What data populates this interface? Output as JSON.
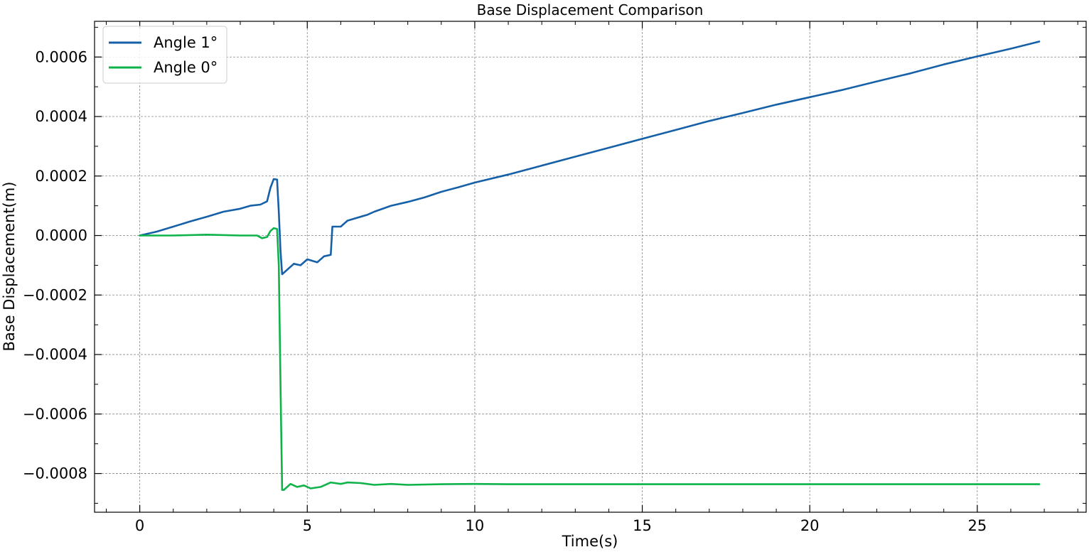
{
  "chart_data": {
    "type": "line",
    "title": "Base Displacement Comparison",
    "xlabel": "Time(s)",
    "ylabel": "Base Displacement(m)",
    "xlim": [
      -1.35,
      28.25
    ],
    "ylim": [
      -0.00093,
      0.00072
    ],
    "x_ticks": [
      0,
      5,
      10,
      15,
      20,
      25
    ],
    "x_tick_labels": [
      "0",
      "5",
      "10",
      "15",
      "20",
      "25"
    ],
    "y_ticks": [
      -0.0008,
      -0.0006,
      -0.0004,
      -0.0002,
      0.0,
      0.0002,
      0.0004,
      0.0006
    ],
    "y_tick_labels": [
      "−0.0008",
      "−0.0006",
      "−0.0004",
      "−0.0002",
      "0.0000",
      "0.0002",
      "0.0004",
      "0.0006"
    ],
    "grid": true,
    "legend_position": "top-left",
    "series": [
      {
        "name": "Angle 1°",
        "color": "#1660a8",
        "points": [
          [
            0,
            0
          ],
          [
            0.5,
            1.3e-05
          ],
          [
            1.0,
            3e-05
          ],
          [
            1.5,
            4.7e-05
          ],
          [
            2.0,
            6.3e-05
          ],
          [
            2.5,
            8e-05
          ],
          [
            3.0,
            9e-05
          ],
          [
            3.3,
            0.0001
          ],
          [
            3.6,
            0.000104
          ],
          [
            3.8,
            0.000115
          ],
          [
            3.9,
            0.00016
          ],
          [
            4.0,
            0.00019
          ],
          [
            4.1,
            0.000188
          ],
          [
            4.15,
            8e-05
          ],
          [
            4.2,
            -5e-05
          ],
          [
            4.25,
            -0.00013
          ],
          [
            4.4,
            -0.000115
          ],
          [
            4.6,
            -9.5e-05
          ],
          [
            4.8,
            -0.0001
          ],
          [
            5.0,
            -8e-05
          ],
          [
            5.3,
            -9e-05
          ],
          [
            5.5,
            -7e-05
          ],
          [
            5.7,
            -6.5e-05
          ],
          [
            5.75,
            3e-05
          ],
          [
            6.0,
            3e-05
          ],
          [
            6.2,
            5e-05
          ],
          [
            6.5,
            6e-05
          ],
          [
            6.8,
            7e-05
          ],
          [
            7.0,
            8e-05
          ],
          [
            7.5,
            0.0001
          ],
          [
            8.0,
            0.000113
          ],
          [
            8.5,
            0.000128
          ],
          [
            9.0,
            0.000147
          ],
          [
            9.5,
            0.000162
          ],
          [
            10.0,
            0.000178
          ],
          [
            11,
            0.000205
          ],
          [
            12,
            0.000235
          ],
          [
            13,
            0.000265
          ],
          [
            14,
            0.000295
          ],
          [
            15,
            0.000325
          ],
          [
            16,
            0.000355
          ],
          [
            17,
            0.000385
          ],
          [
            18,
            0.000412
          ],
          [
            19,
            0.00044
          ],
          [
            20,
            0.000465
          ],
          [
            21,
            0.00049
          ],
          [
            22,
            0.000518
          ],
          [
            23,
            0.000545
          ],
          [
            24,
            0.000575
          ],
          [
            25,
            0.000602
          ],
          [
            26,
            0.000628
          ],
          [
            26.85,
            0.000652
          ]
        ]
      },
      {
        "name": "Angle 0°",
        "color": "#0fb34a",
        "points": [
          [
            0,
            0
          ],
          [
            1.0,
            0.0
          ],
          [
            2.0,
            3e-06
          ],
          [
            3.0,
            0.0
          ],
          [
            3.5,
            0.0
          ],
          [
            3.65,
            -9e-06
          ],
          [
            3.8,
            -5e-06
          ],
          [
            3.9,
            1.5e-05
          ],
          [
            4.0,
            2.5e-05
          ],
          [
            4.1,
            2.2e-05
          ],
          [
            4.15,
            -0.0001
          ],
          [
            4.2,
            -0.0005
          ],
          [
            4.25,
            -0.000855
          ],
          [
            4.3,
            -0.000855
          ],
          [
            4.5,
            -0.000835
          ],
          [
            4.7,
            -0.000845
          ],
          [
            4.9,
            -0.00084
          ],
          [
            5.1,
            -0.00085
          ],
          [
            5.4,
            -0.000845
          ],
          [
            5.7,
            -0.00083
          ],
          [
            6.0,
            -0.000835
          ],
          [
            6.2,
            -0.00083
          ],
          [
            6.6,
            -0.000832
          ],
          [
            7.0,
            -0.000838
          ],
          [
            7.5,
            -0.000835
          ],
          [
            8.0,
            -0.000838
          ],
          [
            9.0,
            -0.000836
          ],
          [
            10.0,
            -0.000835
          ],
          [
            11,
            -0.000836
          ],
          [
            13,
            -0.000836
          ],
          [
            15,
            -0.000836
          ],
          [
            17,
            -0.000836
          ],
          [
            19,
            -0.000836
          ],
          [
            21,
            -0.000836
          ],
          [
            23,
            -0.000836
          ],
          [
            25,
            -0.000836
          ],
          [
            26.85,
            -0.000836
          ]
        ]
      }
    ]
  }
}
